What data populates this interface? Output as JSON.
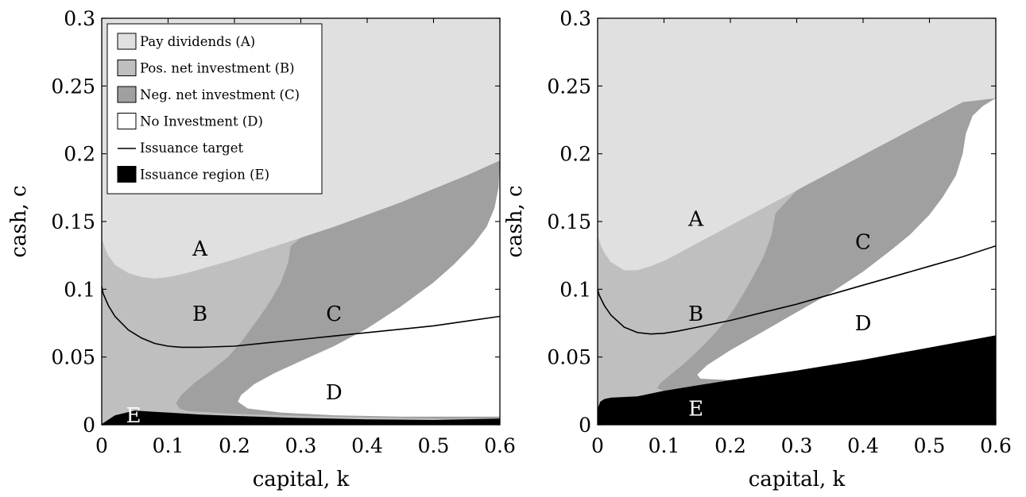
{
  "chart_data": [
    {
      "type": "area",
      "title": "",
      "xlabel": "capital, k",
      "ylabel": "cash, c",
      "xlim": [
        0,
        0.6
      ],
      "ylim": [
        0,
        0.3
      ],
      "xticks": [
        "0",
        "0.1",
        "0.2",
        "0.3",
        "0.4",
        "0.5",
        "0.6"
      ],
      "yticks": [
        "0",
        "0.05",
        "0.1",
        "0.15",
        "0.2",
        "0.25",
        "0.3"
      ],
      "legend": [
        {
          "label": "Pay dividends (A)",
          "kind": "patch",
          "color": "#e0e0e0"
        },
        {
          "label": "Pos. net investment (B)",
          "kind": "patch",
          "color": "#bfbfbf"
        },
        {
          "label": "Neg. net investment (C)",
          "kind": "patch",
          "color": "#a0a0a0"
        },
        {
          "label": "No Investment (D)",
          "kind": "patch",
          "color": "#ffffff"
        },
        {
          "label": "Issuance target",
          "kind": "line",
          "color": "#000000"
        },
        {
          "label": "Issuance region (E)",
          "kind": "patch",
          "color": "#000000"
        }
      ],
      "legend_position": "top-left",
      "region_labels": [
        {
          "text": "A",
          "x": 0.148,
          "y": 0.13,
          "color": "#000000"
        },
        {
          "text": "B",
          "x": 0.148,
          "y": 0.082,
          "color": "#000000"
        },
        {
          "text": "C",
          "x": 0.35,
          "y": 0.082,
          "color": "#000000"
        },
        {
          "text": "D",
          "x": 0.35,
          "y": 0.024,
          "color": "#000000"
        },
        {
          "text": "E",
          "x": 0.048,
          "y": 0.007,
          "color": "#ffffff"
        }
      ],
      "dividend_boundary": {
        "x": [
          0,
          0.005,
          0.01,
          0.02,
          0.04,
          0.06,
          0.08,
          0.1,
          0.12,
          0.15,
          0.2,
          0.25,
          0.3,
          0.35,
          0.4,
          0.45,
          0.5,
          0.55,
          0.6
        ],
        "y": [
          0.138,
          0.13,
          0.125,
          0.118,
          0.112,
          0.109,
          0.108,
          0.109,
          0.111,
          0.115,
          0.122,
          0.13,
          0.138,
          0.146,
          0.155,
          0.164,
          0.174,
          0.184,
          0.195
        ]
      },
      "c_region_left": {
        "x": [
          0.285,
          0.281,
          0.27,
          0.255,
          0.24,
          0.225,
          0.21,
          0.19,
          0.165,
          0.14,
          0.12,
          0.112,
          0.117,
          0.13
        ],
        "y": [
          0.132,
          0.12,
          0.105,
          0.092,
          0.081,
          0.071,
          0.061,
          0.05,
          0.04,
          0.031,
          0.022,
          0.016,
          0.012,
          0.01
        ]
      },
      "c_region_bottom": {
        "x": [
          0.13,
          0.2,
          0.3,
          0.4,
          0.5,
          0.6
        ],
        "y": [
          0.01,
          0.008,
          0.0065,
          0.0055,
          0.0045,
          0.0045
        ]
      },
      "d_region": {
        "x": [
          0.6,
          0.598,
          0.592,
          0.58,
          0.56,
          0.53,
          0.5,
          0.45,
          0.4,
          0.35,
          0.3,
          0.26,
          0.23,
          0.21,
          0.205,
          0.22,
          0.27,
          0.35,
          0.45,
          0.55,
          0.6
        ],
        "y": [
          0.195,
          0.175,
          0.16,
          0.146,
          0.133,
          0.118,
          0.105,
          0.087,
          0.071,
          0.058,
          0.047,
          0.038,
          0.03,
          0.022,
          0.017,
          0.012,
          0.009,
          0.007,
          0.006,
          0.006,
          0.006
        ]
      },
      "issuance_target": {
        "x": [
          0,
          0.002,
          0.01,
          0.02,
          0.04,
          0.06,
          0.08,
          0.1,
          0.12,
          0.15,
          0.2,
          0.25,
          0.3,
          0.35,
          0.4,
          0.45,
          0.5,
          0.55,
          0.6
        ],
        "y": [
          0.102,
          0.097,
          0.088,
          0.08,
          0.07,
          0.064,
          0.06,
          0.058,
          0.0572,
          0.0572,
          0.058,
          0.0605,
          0.063,
          0.0655,
          0.068,
          0.0705,
          0.073,
          0.0765,
          0.08
        ]
      },
      "issuance_region": {
        "x": [
          0,
          0.02,
          0.05,
          0.08,
          0.1,
          0.15,
          0.2,
          0.3,
          0.4,
          0.5,
          0.6
        ],
        "y": [
          0.0005,
          0.007,
          0.0105,
          0.0095,
          0.009,
          0.0075,
          0.0065,
          0.005,
          0.004,
          0.0035,
          0.0045
        ]
      }
    },
    {
      "type": "area",
      "title": "",
      "xlabel": "capital, k",
      "ylabel": "cash, c",
      "xlim": [
        0,
        0.6
      ],
      "ylim": [
        0,
        0.3
      ],
      "xticks": [
        "0",
        "0.1",
        "0.2",
        "0.3",
        "0.4",
        "0.5",
        "0.6"
      ],
      "yticks": [
        "0",
        "0.05",
        "0.1",
        "0.15",
        "0.2",
        "0.25",
        "0.3"
      ],
      "region_labels": [
        {
          "text": "A",
          "x": 0.148,
          "y": 0.152,
          "color": "#000000"
        },
        {
          "text": "B",
          "x": 0.148,
          "y": 0.082,
          "color": "#000000"
        },
        {
          "text": "C",
          "x": 0.4,
          "y": 0.135,
          "color": "#000000"
        },
        {
          "text": "D",
          "x": 0.4,
          "y": 0.075,
          "color": "#000000"
        },
        {
          "text": "E",
          "x": 0.148,
          "y": 0.012,
          "color": "#ffffff"
        }
      ],
      "dividend_boundary": {
        "x": [
          0,
          0.005,
          0.01,
          0.02,
          0.04,
          0.06,
          0.08,
          0.1,
          0.12,
          0.15,
          0.2,
          0.25,
          0.3,
          0.35,
          0.4,
          0.45,
          0.5,
          0.55,
          0.6
        ],
        "y": [
          0.14,
          0.132,
          0.127,
          0.12,
          0.114,
          0.114,
          0.117,
          0.121,
          0.126,
          0.134,
          0.147,
          0.16,
          0.173,
          0.186,
          0.199,
          0.212,
          0.225,
          0.238,
          0.241
        ]
      },
      "c_region_left": {
        "x": [
          0.268,
          0.262,
          0.25,
          0.235,
          0.22,
          0.205,
          0.19,
          0.17,
          0.15,
          0.13,
          0.11,
          0.095,
          0.09,
          0.1,
          0.12
        ],
        "y": [
          0.156,
          0.14,
          0.124,
          0.11,
          0.097,
          0.085,
          0.075,
          0.064,
          0.054,
          0.045,
          0.037,
          0.031,
          0.027,
          0.025,
          0.0245
        ]
      },
      "c_region_bottom": {
        "x": [
          0.12,
          0.2,
          0.3,
          0.4,
          0.5,
          0.6
        ],
        "y": [
          0.0245,
          0.03,
          0.037,
          0.044,
          0.051,
          0.058
        ]
      },
      "d_region": {
        "x": [
          0.6,
          0.58,
          0.565,
          0.555,
          0.55,
          0.54,
          0.52,
          0.5,
          0.47,
          0.44,
          0.4,
          0.35,
          0.3,
          0.25,
          0.2,
          0.165,
          0.15,
          0.155,
          0.2,
          0.3,
          0.4,
          0.5,
          0.6
        ],
        "y": [
          0.241,
          0.235,
          0.228,
          0.215,
          0.2,
          0.184,
          0.168,
          0.155,
          0.14,
          0.128,
          0.113,
          0.097,
          0.083,
          0.069,
          0.055,
          0.044,
          0.037,
          0.034,
          0.033,
          0.038,
          0.046,
          0.055,
          0.064
        ]
      },
      "issuance_target": {
        "x": [
          0,
          0.002,
          0.01,
          0.02,
          0.04,
          0.06,
          0.08,
          0.1,
          0.12,
          0.15,
          0.2,
          0.25,
          0.3,
          0.35,
          0.4,
          0.45,
          0.5,
          0.55,
          0.6
        ],
        "y": [
          0.1,
          0.096,
          0.088,
          0.081,
          0.072,
          0.068,
          0.067,
          0.0675,
          0.069,
          0.072,
          0.077,
          0.083,
          0.089,
          0.096,
          0.103,
          0.11,
          0.117,
          0.124,
          0.132
        ]
      },
      "issuance_region": {
        "x": [
          0,
          0.004,
          0.01,
          0.02,
          0.04,
          0.06,
          0.1,
          0.2,
          0.3,
          0.4,
          0.5,
          0.6
        ],
        "y": [
          0.012,
          0.017,
          0.019,
          0.02,
          0.0205,
          0.021,
          0.025,
          0.033,
          0.04,
          0.048,
          0.057,
          0.066
        ]
      }
    }
  ]
}
